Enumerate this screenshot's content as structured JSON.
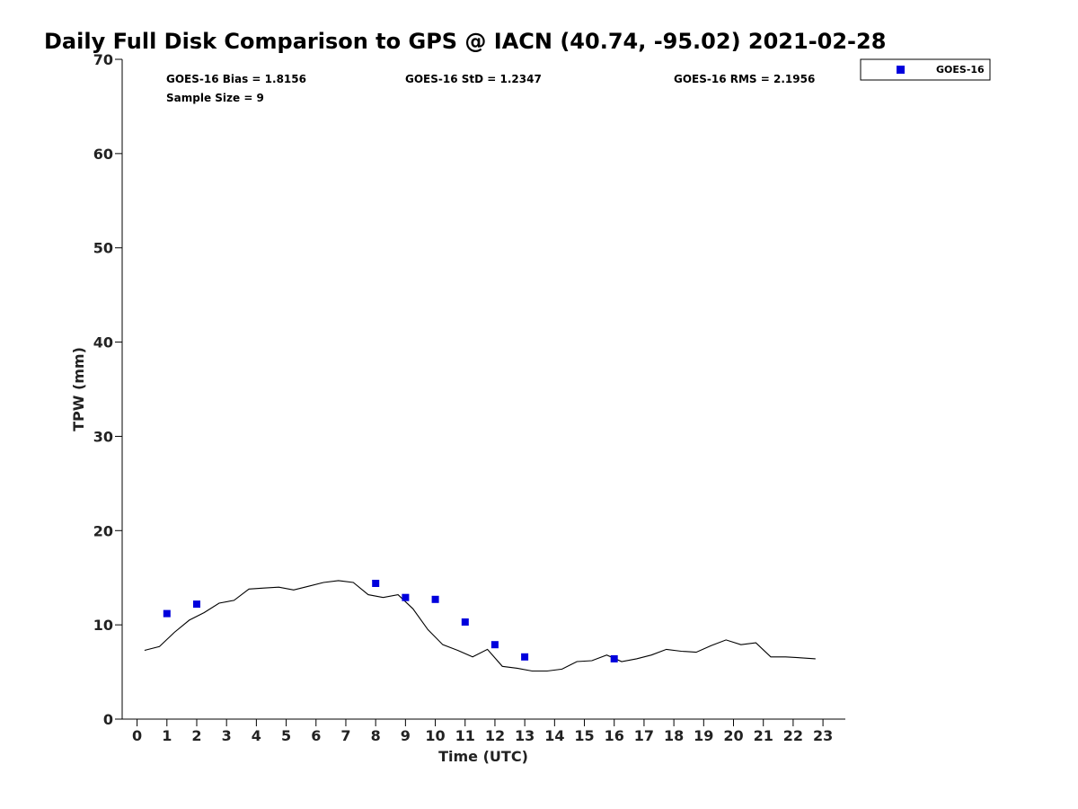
{
  "chart_data": {
    "type": "scatter",
    "title": "Daily Full Disk Comparison to GPS @ IACN (40.74, -95.02) 2021-02-28",
    "xlabel": "Time (UTC)",
    "ylabel": "TPW (mm)",
    "xlim": [
      -0.5,
      23.75
    ],
    "ylim": [
      0,
      70
    ],
    "x_ticks": [
      "0",
      "1",
      "2",
      "3",
      "4",
      "5",
      "6",
      "7",
      "8",
      "9",
      "10",
      "11",
      "12",
      "13",
      "14",
      "15",
      "16",
      "17",
      "18",
      "19",
      "20",
      "21",
      "22",
      "23"
    ],
    "y_ticks": [
      "0",
      "10",
      "20",
      "30",
      "40",
      "50",
      "60",
      "70"
    ],
    "grid": false,
    "legend_position": "top-right, outside plot",
    "stats": {
      "bias": "GOES-16 Bias = 1.8156",
      "std": "GOES-16 StD = 1.2347",
      "rms": "GOES-16 RMS = 2.1956",
      "sample_size": "Sample Size = 9"
    },
    "series": [
      {
        "name": "GOES-16",
        "kind": "scatter",
        "marker": "square",
        "color": "#0000dd",
        "x": [
          1,
          2,
          8,
          9,
          10,
          11,
          12,
          13,
          16
        ],
        "y": [
          11.2,
          12.2,
          14.4,
          12.9,
          12.7,
          10.3,
          7.9,
          6.6,
          6.4
        ]
      },
      {
        "kind": "line",
        "color": "#000000",
        "x": [
          0.25,
          0.75,
          1.25,
          1.75,
          2.25,
          2.75,
          3.25,
          3.75,
          4.25,
          4.75,
          5.25,
          5.75,
          6.25,
          6.75,
          7.25,
          7.75,
          8.25,
          8.75,
          9.25,
          9.75,
          10.25,
          10.75,
          11.25,
          11.75,
          12.25,
          12.75,
          13.25,
          13.75,
          14.25,
          14.75,
          15.25,
          15.75,
          16.25,
          16.75,
          17.25,
          17.75,
          18.25,
          18.75,
          19.25,
          19.75,
          20.25,
          20.75,
          21.25,
          21.75,
          22.25,
          22.75
        ],
        "y": [
          7.3,
          7.7,
          9.2,
          10.5,
          11.3,
          12.3,
          12.6,
          13.8,
          13.9,
          14.0,
          13.7,
          14.1,
          14.5,
          14.7,
          14.5,
          13.2,
          12.9,
          13.2,
          11.7,
          9.5,
          7.9,
          7.3,
          6.6,
          7.4,
          5.6,
          5.4,
          5.1,
          5.1,
          5.3,
          6.1,
          6.2,
          6.8,
          6.1,
          6.4,
          6.8,
          7.4,
          7.2,
          7.1,
          7.8,
          8.4,
          7.9,
          8.1,
          6.6,
          6.6,
          6.5,
          6.4
        ]
      }
    ]
  }
}
